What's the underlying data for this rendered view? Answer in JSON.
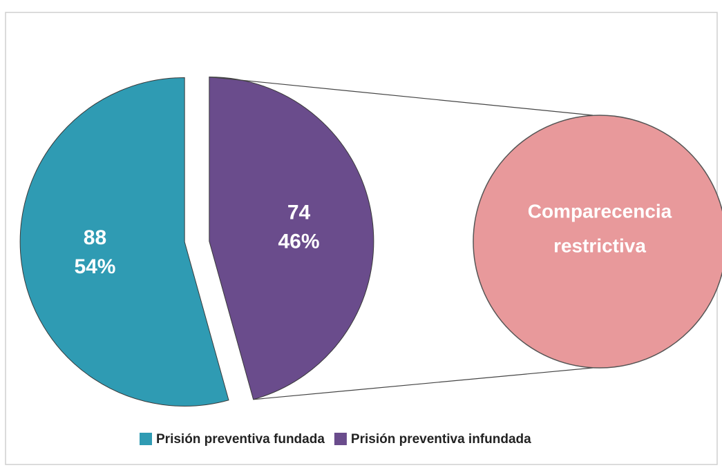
{
  "chart_data": {
    "type": "pie",
    "categories": [
      "Prisión preventiva fundada",
      "Prisión preventiva infundada"
    ],
    "values": [
      88,
      74
    ],
    "percent_labels": [
      "54%",
      "46%"
    ],
    "colors": [
      "#2f9bb3",
      "#6a4c8c"
    ],
    "annotation": [
      "Comparecencia",
      "restrictiva"
    ],
    "annotation_color": "#e8999b",
    "legend": "bottom"
  }
}
